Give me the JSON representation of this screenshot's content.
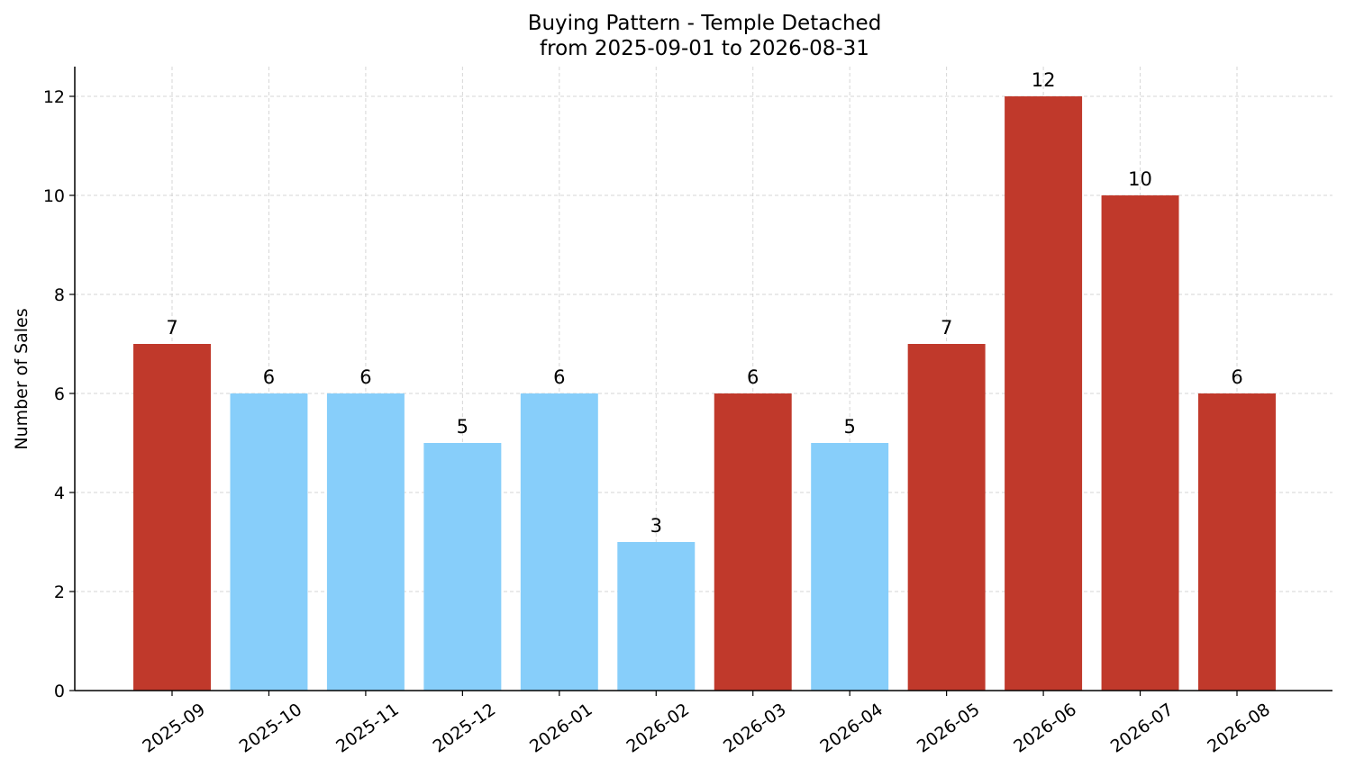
{
  "chart_data": {
    "type": "bar",
    "title_line1": "Buying Pattern - Temple Detached",
    "title_line2": "from 2025-09-01 to 2026-08-31",
    "ylabel": "Number of Sales",
    "xlabel": "",
    "categories": [
      "2025-09",
      "2025-10",
      "2025-11",
      "2025-12",
      "2026-01",
      "2026-02",
      "2026-03",
      "2026-04",
      "2026-05",
      "2026-06",
      "2026-07",
      "2026-08"
    ],
    "values": [
      7,
      6,
      6,
      5,
      6,
      3,
      6,
      5,
      7,
      12,
      10,
      6
    ],
    "value_labels": [
      "7",
      "6",
      "6",
      "5",
      "6",
      "3",
      "6",
      "5",
      "7",
      "12",
      "10",
      "6"
    ],
    "highlight": [
      true,
      false,
      false,
      false,
      false,
      false,
      true,
      false,
      true,
      true,
      true,
      true
    ],
    "ylim": [
      0,
      12.6
    ],
    "yticks": [
      0,
      2,
      4,
      6,
      8,
      10,
      12
    ],
    "ytick_labels": [
      "0",
      "2",
      "4",
      "6",
      "8",
      "10",
      "12"
    ],
    "grid": true,
    "legend": "none",
    "colors": {
      "highlight": "#c0392b",
      "normal": "#87cefa"
    }
  }
}
